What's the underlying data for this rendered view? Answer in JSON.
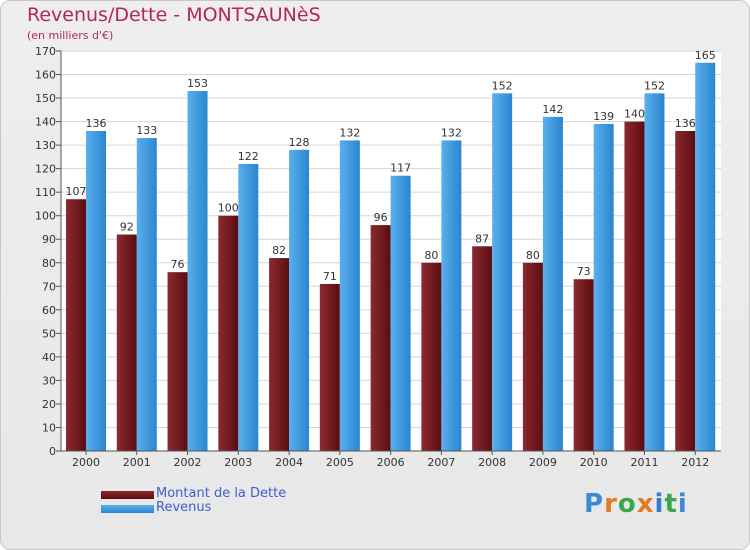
{
  "header": {
    "title": "Revenus/Dette - MONTSAUNèS",
    "subtitle": "(en milliers d'€)"
  },
  "legend": {
    "items": [
      {
        "label": "Montant de la Dette",
        "color": "#7a1a22"
      },
      {
        "label": "Revenus",
        "color": "#3d9be0"
      }
    ]
  },
  "logo": {
    "text": "Proxiti"
  },
  "colors": {
    "debt_top": "#8c2a30",
    "debt_bottom": "#5a0d12",
    "revenue_top": "#5aafec",
    "revenue_bottom": "#2a86d0",
    "title": "#b5255a"
  },
  "chart_data": {
    "type": "bar",
    "title": "Revenus/Dette - MONTSAUNèS",
    "subtitle": "(en milliers d'€)",
    "categories": [
      "2000",
      "2001",
      "2002",
      "2003",
      "2004",
      "2005",
      "2006",
      "2007",
      "2008",
      "2009",
      "2010",
      "2011",
      "2012"
    ],
    "series": [
      {
        "name": "Montant de la Dette",
        "values": [
          107,
          92,
          76,
          100,
          82,
          71,
          96,
          80,
          87,
          80,
          73,
          140,
          136
        ]
      },
      {
        "name": "Revenus",
        "values": [
          136,
          133,
          153,
          122,
          128,
          132,
          117,
          132,
          152,
          142,
          139,
          152,
          165
        ]
      }
    ],
    "ylim": [
      0,
      170
    ],
    "ytick_step": 10,
    "grid": true,
    "legend_position": "bottom-left"
  }
}
